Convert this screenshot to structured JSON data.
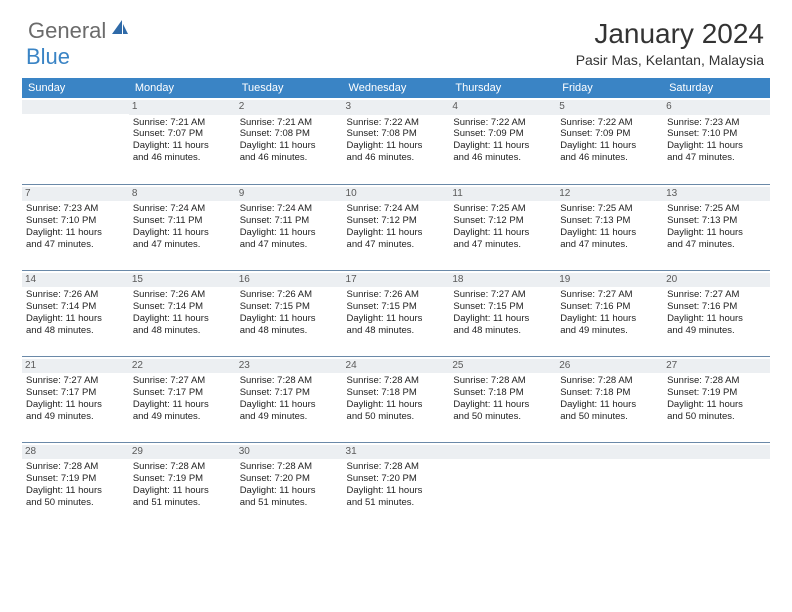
{
  "logo": {
    "general": "General",
    "blue": "Blue"
  },
  "title": "January 2024",
  "location": "Pasir Mas, Kelantan, Malaysia",
  "colors": {
    "header_bg": "#3a84c5",
    "header_text": "#ffffff",
    "daynum_bg": "#eceff2",
    "row_border": "#6a89a8",
    "logo_gray": "#6b6b6b",
    "logo_blue": "#3a84c5"
  },
  "weekdays": [
    "Sunday",
    "Monday",
    "Tuesday",
    "Wednesday",
    "Thursday",
    "Friday",
    "Saturday"
  ],
  "weeks": [
    [
      {
        "n": "",
        "sr": "",
        "ss": "",
        "dl1": "",
        "dl2": ""
      },
      {
        "n": "1",
        "sr": "Sunrise: 7:21 AM",
        "ss": "Sunset: 7:07 PM",
        "dl1": "Daylight: 11 hours",
        "dl2": "and 46 minutes."
      },
      {
        "n": "2",
        "sr": "Sunrise: 7:21 AM",
        "ss": "Sunset: 7:08 PM",
        "dl1": "Daylight: 11 hours",
        "dl2": "and 46 minutes."
      },
      {
        "n": "3",
        "sr": "Sunrise: 7:22 AM",
        "ss": "Sunset: 7:08 PM",
        "dl1": "Daylight: 11 hours",
        "dl2": "and 46 minutes."
      },
      {
        "n": "4",
        "sr": "Sunrise: 7:22 AM",
        "ss": "Sunset: 7:09 PM",
        "dl1": "Daylight: 11 hours",
        "dl2": "and 46 minutes."
      },
      {
        "n": "5",
        "sr": "Sunrise: 7:22 AM",
        "ss": "Sunset: 7:09 PM",
        "dl1": "Daylight: 11 hours",
        "dl2": "and 46 minutes."
      },
      {
        "n": "6",
        "sr": "Sunrise: 7:23 AM",
        "ss": "Sunset: 7:10 PM",
        "dl1": "Daylight: 11 hours",
        "dl2": "and 47 minutes."
      }
    ],
    [
      {
        "n": "7",
        "sr": "Sunrise: 7:23 AM",
        "ss": "Sunset: 7:10 PM",
        "dl1": "Daylight: 11 hours",
        "dl2": "and 47 minutes."
      },
      {
        "n": "8",
        "sr": "Sunrise: 7:24 AM",
        "ss": "Sunset: 7:11 PM",
        "dl1": "Daylight: 11 hours",
        "dl2": "and 47 minutes."
      },
      {
        "n": "9",
        "sr": "Sunrise: 7:24 AM",
        "ss": "Sunset: 7:11 PM",
        "dl1": "Daylight: 11 hours",
        "dl2": "and 47 minutes."
      },
      {
        "n": "10",
        "sr": "Sunrise: 7:24 AM",
        "ss": "Sunset: 7:12 PM",
        "dl1": "Daylight: 11 hours",
        "dl2": "and 47 minutes."
      },
      {
        "n": "11",
        "sr": "Sunrise: 7:25 AM",
        "ss": "Sunset: 7:12 PM",
        "dl1": "Daylight: 11 hours",
        "dl2": "and 47 minutes."
      },
      {
        "n": "12",
        "sr": "Sunrise: 7:25 AM",
        "ss": "Sunset: 7:13 PM",
        "dl1": "Daylight: 11 hours",
        "dl2": "and 47 minutes."
      },
      {
        "n": "13",
        "sr": "Sunrise: 7:25 AM",
        "ss": "Sunset: 7:13 PM",
        "dl1": "Daylight: 11 hours",
        "dl2": "and 47 minutes."
      }
    ],
    [
      {
        "n": "14",
        "sr": "Sunrise: 7:26 AM",
        "ss": "Sunset: 7:14 PM",
        "dl1": "Daylight: 11 hours",
        "dl2": "and 48 minutes."
      },
      {
        "n": "15",
        "sr": "Sunrise: 7:26 AM",
        "ss": "Sunset: 7:14 PM",
        "dl1": "Daylight: 11 hours",
        "dl2": "and 48 minutes."
      },
      {
        "n": "16",
        "sr": "Sunrise: 7:26 AM",
        "ss": "Sunset: 7:15 PM",
        "dl1": "Daylight: 11 hours",
        "dl2": "and 48 minutes."
      },
      {
        "n": "17",
        "sr": "Sunrise: 7:26 AM",
        "ss": "Sunset: 7:15 PM",
        "dl1": "Daylight: 11 hours",
        "dl2": "and 48 minutes."
      },
      {
        "n": "18",
        "sr": "Sunrise: 7:27 AM",
        "ss": "Sunset: 7:15 PM",
        "dl1": "Daylight: 11 hours",
        "dl2": "and 48 minutes."
      },
      {
        "n": "19",
        "sr": "Sunrise: 7:27 AM",
        "ss": "Sunset: 7:16 PM",
        "dl1": "Daylight: 11 hours",
        "dl2": "and 49 minutes."
      },
      {
        "n": "20",
        "sr": "Sunrise: 7:27 AM",
        "ss": "Sunset: 7:16 PM",
        "dl1": "Daylight: 11 hours",
        "dl2": "and 49 minutes."
      }
    ],
    [
      {
        "n": "21",
        "sr": "Sunrise: 7:27 AM",
        "ss": "Sunset: 7:17 PM",
        "dl1": "Daylight: 11 hours",
        "dl2": "and 49 minutes."
      },
      {
        "n": "22",
        "sr": "Sunrise: 7:27 AM",
        "ss": "Sunset: 7:17 PM",
        "dl1": "Daylight: 11 hours",
        "dl2": "and 49 minutes."
      },
      {
        "n": "23",
        "sr": "Sunrise: 7:28 AM",
        "ss": "Sunset: 7:17 PM",
        "dl1": "Daylight: 11 hours",
        "dl2": "and 49 minutes."
      },
      {
        "n": "24",
        "sr": "Sunrise: 7:28 AM",
        "ss": "Sunset: 7:18 PM",
        "dl1": "Daylight: 11 hours",
        "dl2": "and 50 minutes."
      },
      {
        "n": "25",
        "sr": "Sunrise: 7:28 AM",
        "ss": "Sunset: 7:18 PM",
        "dl1": "Daylight: 11 hours",
        "dl2": "and 50 minutes."
      },
      {
        "n": "26",
        "sr": "Sunrise: 7:28 AM",
        "ss": "Sunset: 7:18 PM",
        "dl1": "Daylight: 11 hours",
        "dl2": "and 50 minutes."
      },
      {
        "n": "27",
        "sr": "Sunrise: 7:28 AM",
        "ss": "Sunset: 7:19 PM",
        "dl1": "Daylight: 11 hours",
        "dl2": "and 50 minutes."
      }
    ],
    [
      {
        "n": "28",
        "sr": "Sunrise: 7:28 AM",
        "ss": "Sunset: 7:19 PM",
        "dl1": "Daylight: 11 hours",
        "dl2": "and 50 minutes."
      },
      {
        "n": "29",
        "sr": "Sunrise: 7:28 AM",
        "ss": "Sunset: 7:19 PM",
        "dl1": "Daylight: 11 hours",
        "dl2": "and 51 minutes."
      },
      {
        "n": "30",
        "sr": "Sunrise: 7:28 AM",
        "ss": "Sunset: 7:20 PM",
        "dl1": "Daylight: 11 hours",
        "dl2": "and 51 minutes."
      },
      {
        "n": "31",
        "sr": "Sunrise: 7:28 AM",
        "ss": "Sunset: 7:20 PM",
        "dl1": "Daylight: 11 hours",
        "dl2": "and 51 minutes."
      },
      {
        "n": "",
        "sr": "",
        "ss": "",
        "dl1": "",
        "dl2": ""
      },
      {
        "n": "",
        "sr": "",
        "ss": "",
        "dl1": "",
        "dl2": ""
      },
      {
        "n": "",
        "sr": "",
        "ss": "",
        "dl1": "",
        "dl2": ""
      }
    ]
  ]
}
